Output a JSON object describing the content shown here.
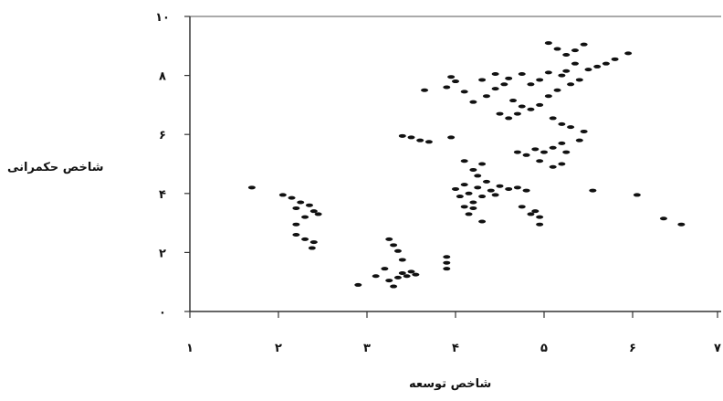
{
  "chart_data": {
    "type": "scatter",
    "title": "",
    "xlabel": "شاخص توسعه",
    "ylabel": "شاخص حکمرانی",
    "xlim": [
      1,
      7
    ],
    "ylim": [
      0,
      10
    ],
    "x_ticks": [
      {
        "value": 1,
        "label": "۱"
      },
      {
        "value": 2,
        "label": "۲"
      },
      {
        "value": 3,
        "label": "۳"
      },
      {
        "value": 4,
        "label": "۴"
      },
      {
        "value": 5,
        "label": "۵"
      },
      {
        "value": 6,
        "label": "۶"
      },
      {
        "value": 7,
        "label": "۷"
      }
    ],
    "y_ticks": [
      {
        "value": 0,
        "label": "۰"
      },
      {
        "value": 2,
        "label": "۲"
      },
      {
        "value": 4,
        "label": "۴"
      },
      {
        "value": 6,
        "label": "۶"
      },
      {
        "value": 8,
        "label": "۸"
      },
      {
        "value": 10,
        "label": "۱۰"
      }
    ],
    "grid": false,
    "marker_color": "#111111",
    "points": [
      [
        1.7,
        4.2
      ],
      [
        2.05,
        3.95
      ],
      [
        2.15,
        3.85
      ],
      [
        2.2,
        3.5
      ],
      [
        2.25,
        3.7
      ],
      [
        2.3,
        3.2
      ],
      [
        2.2,
        2.95
      ],
      [
        2.35,
        3.6
      ],
      [
        2.4,
        3.4
      ],
      [
        2.2,
        2.6
      ],
      [
        2.3,
        2.45
      ],
      [
        2.4,
        2.35
      ],
      [
        2.38,
        2.15
      ],
      [
        2.45,
        3.3
      ],
      [
        2.9,
        0.9
      ],
      [
        3.1,
        1.2
      ],
      [
        3.2,
        1.45
      ],
      [
        3.25,
        1.05
      ],
      [
        3.3,
        0.85
      ],
      [
        3.35,
        1.15
      ],
      [
        3.4,
        1.3
      ],
      [
        3.45,
        1.2
      ],
      [
        3.5,
        1.35
      ],
      [
        3.55,
        1.25
      ],
      [
        3.25,
        2.45
      ],
      [
        3.3,
        2.25
      ],
      [
        3.35,
        2.05
      ],
      [
        3.4,
        1.75
      ],
      [
        3.4,
        5.95
      ],
      [
        3.5,
        5.9
      ],
      [
        3.6,
        5.8
      ],
      [
        3.7,
        5.75
      ],
      [
        3.95,
        5.9
      ],
      [
        3.9,
        1.45
      ],
      [
        3.9,
        1.65
      ],
      [
        3.9,
        1.85
      ],
      [
        4.0,
        4.15
      ],
      [
        4.05,
        3.9
      ],
      [
        4.1,
        4.3
      ],
      [
        4.15,
        4.0
      ],
      [
        4.2,
        3.7
      ],
      [
        4.25,
        4.2
      ],
      [
        4.3,
        3.9
      ],
      [
        4.35,
        4.4
      ],
      [
        4.4,
        4.1
      ],
      [
        4.45,
        3.95
      ],
      [
        4.5,
        4.25
      ],
      [
        4.2,
        3.5
      ],
      [
        4.15,
        3.3
      ],
      [
        4.3,
        3.05
      ],
      [
        4.1,
        5.1
      ],
      [
        4.2,
        4.8
      ],
      [
        4.25,
        4.6
      ],
      [
        4.3,
        5.0
      ],
      [
        4.1,
        3.55
      ],
      [
        4.6,
        4.15
      ],
      [
        4.7,
        4.2
      ],
      [
        4.8,
        4.1
      ],
      [
        4.75,
        3.55
      ],
      [
        4.85,
        3.3
      ],
      [
        4.95,
        3.2
      ],
      [
        4.95,
        2.95
      ],
      [
        4.9,
        3.4
      ],
      [
        4.7,
        5.4
      ],
      [
        4.8,
        5.3
      ],
      [
        4.9,
        5.5
      ],
      [
        5.0,
        5.4
      ],
      [
        5.1,
        5.55
      ],
      [
        5.2,
        5.7
      ],
      [
        5.25,
        5.4
      ],
      [
        4.95,
        5.1
      ],
      [
        5.1,
        4.9
      ],
      [
        5.2,
        5.0
      ],
      [
        3.65,
        7.5
      ],
      [
        3.9,
        7.6
      ],
      [
        4.0,
        7.8
      ],
      [
        4.1,
        7.45
      ],
      [
        4.2,
        7.1
      ],
      [
        4.35,
        7.3
      ],
      [
        4.45,
        7.55
      ],
      [
        4.55,
        7.7
      ],
      [
        4.65,
        7.15
      ],
      [
        4.75,
        6.95
      ],
      [
        4.5,
        6.7
      ],
      [
        4.6,
        6.55
      ],
      [
        4.7,
        6.7
      ],
      [
        4.85,
        6.85
      ],
      [
        4.95,
        7.0
      ],
      [
        5.05,
        7.3
      ],
      [
        5.15,
        7.5
      ],
      [
        4.3,
        7.85
      ],
      [
        4.45,
        8.05
      ],
      [
        4.6,
        7.9
      ],
      [
        4.75,
        8.05
      ],
      [
        4.85,
        7.7
      ],
      [
        4.95,
        7.85
      ],
      [
        5.05,
        8.1
      ],
      [
        5.2,
        8.0
      ],
      [
        5.3,
        7.7
      ],
      [
        5.4,
        7.85
      ],
      [
        5.5,
        8.2
      ],
      [
        5.6,
        8.3
      ],
      [
        5.7,
        8.4
      ],
      [
        5.8,
        8.55
      ],
      [
        5.95,
        8.75
      ],
      [
        5.05,
        9.1
      ],
      [
        5.15,
        8.9
      ],
      [
        5.25,
        8.7
      ],
      [
        5.35,
        8.85
      ],
      [
        5.45,
        9.05
      ],
      [
        5.35,
        8.4
      ],
      [
        5.25,
        8.15
      ],
      [
        5.1,
        6.55
      ],
      [
        5.2,
        6.35
      ],
      [
        5.3,
        6.25
      ],
      [
        5.4,
        5.8
      ],
      [
        5.45,
        6.1
      ],
      [
        3.95,
        7.95
      ],
      [
        5.55,
        4.1
      ],
      [
        6.05,
        3.95
      ],
      [
        6.35,
        3.15
      ],
      [
        6.55,
        2.95
      ]
    ]
  }
}
